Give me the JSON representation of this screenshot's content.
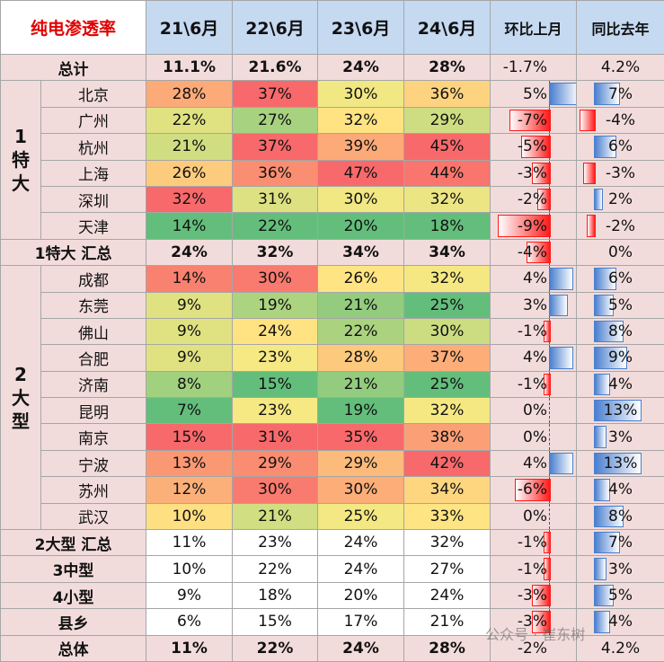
{
  "header": {
    "title": "纯电渗透率",
    "columns": [
      "21\\6月",
      "22\\6月",
      "23\\6月",
      "24\\6月",
      "环比上月",
      "同比去年"
    ]
  },
  "heat": {
    "min": "#63be7b",
    "mid": "#ffeb84",
    "max": "#f8696b"
  },
  "rows": [
    {
      "label": "总计",
      "values": [
        "11.1%",
        "21.6%",
        "24%",
        "28%"
      ],
      "mom": "-1.7%",
      "yoy": "4.2%",
      "fill": "#f2dcdb",
      "bars": false
    },
    {
      "group": "1特大",
      "cities": [
        {
          "label": "北京",
          "values": [
            "28%",
            "37%",
            "30%",
            "36%"
          ],
          "mom": "5%",
          "yoy": "7%"
        },
        {
          "label": "广州",
          "values": [
            "22%",
            "27%",
            "32%",
            "29%"
          ],
          "mom": "-7%",
          "yoy": "-4%"
        },
        {
          "label": "杭州",
          "values": [
            "21%",
            "37%",
            "39%",
            "45%"
          ],
          "mom": "-5%",
          "yoy": "6%"
        },
        {
          "label": "上海",
          "values": [
            "26%",
            "36%",
            "47%",
            "44%"
          ],
          "mom": "-3%",
          "yoy": "-3%"
        },
        {
          "label": "深圳",
          "values": [
            "32%",
            "31%",
            "30%",
            "32%"
          ],
          "mom": "-2%",
          "yoy": "2%"
        },
        {
          "label": "天津",
          "values": [
            "14%",
            "22%",
            "20%",
            "18%"
          ],
          "mom": "-9%",
          "yoy": "-2%"
        }
      ]
    },
    {
      "label": "1特大 汇总",
      "values": [
        "24%",
        "32%",
        "34%",
        "34%"
      ],
      "mom": "-4%",
      "yoy": "0%",
      "fill": "#f2dcdb",
      "bars": true
    },
    {
      "group": "2大型",
      "cities": [
        {
          "label": "成都",
          "values": [
            "14%",
            "30%",
            "26%",
            "32%"
          ],
          "mom": "4%",
          "yoy": "6%"
        },
        {
          "label": "东莞",
          "values": [
            "9%",
            "19%",
            "21%",
            "25%"
          ],
          "mom": "3%",
          "yoy": "5%"
        },
        {
          "label": "佛山",
          "values": [
            "9%",
            "24%",
            "22%",
            "30%"
          ],
          "mom": "-1%",
          "yoy": "8%"
        },
        {
          "label": "合肥",
          "values": [
            "9%",
            "23%",
            "28%",
            "37%"
          ],
          "mom": "4%",
          "yoy": "9%"
        },
        {
          "label": "济南",
          "values": [
            "8%",
            "15%",
            "21%",
            "25%"
          ],
          "mom": "-1%",
          "yoy": "4%"
        },
        {
          "label": "昆明",
          "values": [
            "7%",
            "23%",
            "19%",
            "32%"
          ],
          "mom": "0%",
          "yoy": "13%"
        },
        {
          "label": "南京",
          "values": [
            "15%",
            "31%",
            "35%",
            "38%"
          ],
          "mom": "0%",
          "yoy": "3%"
        },
        {
          "label": "宁波",
          "values": [
            "13%",
            "29%",
            "29%",
            "42%"
          ],
          "mom": "4%",
          "yoy": "13%"
        },
        {
          "label": "苏州",
          "values": [
            "12%",
            "30%",
            "30%",
            "34%"
          ],
          "mom": "-6%",
          "yoy": "4%"
        },
        {
          "label": "武汉",
          "values": [
            "10%",
            "21%",
            "25%",
            "33%"
          ],
          "mom": "0%",
          "yoy": "8%"
        }
      ]
    },
    {
      "label": "2大型 汇总",
      "values": [
        "11%",
        "23%",
        "24%",
        "32%"
      ],
      "mom": "-1%",
      "yoy": "7%",
      "fill": "#ffffff",
      "bars": true
    },
    {
      "label": "3中型",
      "values": [
        "10%",
        "22%",
        "24%",
        "27%"
      ],
      "mom": "-1%",
      "yoy": "3%",
      "fill": "#ffffff",
      "bars": true
    },
    {
      "label": "4小型",
      "values": [
        "9%",
        "18%",
        "20%",
        "24%"
      ],
      "mom": "-3%",
      "yoy": "5%",
      "fill": "#ffffff",
      "bars": true
    },
    {
      "label": "县乡",
      "values": [
        "6%",
        "15%",
        "17%",
        "21%"
      ],
      "mom": "-3%",
      "yoy": "4%",
      "fill": "#ffffff",
      "bars": true
    },
    {
      "label": "总体",
      "values": [
        "11%",
        "22%",
        "24%",
        "28%"
      ],
      "mom": "-2%",
      "yoy": "4.2%",
      "fill": "#f2dcdb",
      "bars": false
    }
  ],
  "watermark": "公众号 · 崔东树"
}
